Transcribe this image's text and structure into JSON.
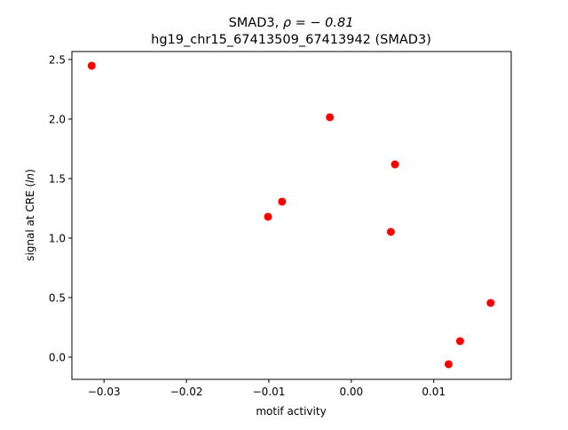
{
  "chart_data": {
    "type": "scatter",
    "title_line1_prefix": "SMAD3, ",
    "title_line1_math": "ρ = − 0.81",
    "title_line2": "hg19_chr15_67413509_67413942 (SMAD3)",
    "xlabel": "motif activity",
    "ylabel_prefix": "signal at CRE (",
    "ylabel_math": "ln",
    "ylabel_suffix": ")",
    "xlim": [
      -0.0339,
      0.0194
    ],
    "ylim": [
      -0.187,
      2.567
    ],
    "xticks": [
      -0.03,
      -0.02,
      -0.01,
      0.0,
      0.01
    ],
    "xtick_labels": [
      "−0.03",
      "−0.02",
      "−0.01",
      "0.00",
      "0.01"
    ],
    "yticks": [
      0.0,
      0.5,
      1.0,
      1.5,
      2.0,
      2.5
    ],
    "ytick_labels": [
      "0.0",
      "0.5",
      "1.0",
      "1.5",
      "2.0",
      "2.5"
    ],
    "grid": false,
    "marker_color": "#ff0000",
    "points": [
      {
        "x": -0.0315,
        "y": 2.448
      },
      {
        "x": -0.0026,
        "y": 2.015
      },
      {
        "x": 0.0053,
        "y": 1.619
      },
      {
        "x": -0.0084,
        "y": 1.306
      },
      {
        "x": -0.0101,
        "y": 1.179
      },
      {
        "x": 0.0048,
        "y": 1.052
      },
      {
        "x": 0.0169,
        "y": 0.455
      },
      {
        "x": 0.0132,
        "y": 0.134
      },
      {
        "x": 0.0118,
        "y": -0.06
      }
    ]
  }
}
